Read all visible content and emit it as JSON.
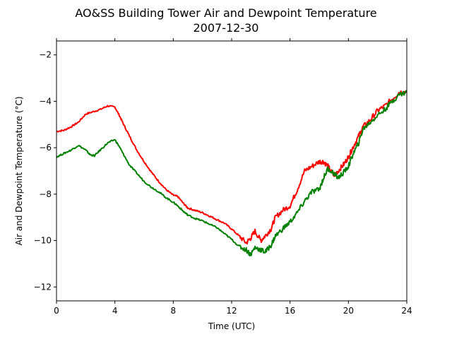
{
  "chart_data": {
    "type": "line",
    "title": "AO&SS Building Tower Air and Dewpoint Temperature",
    "subtitle": "2007-12-30",
    "xlabel": "Time (UTC)",
    "ylabel": "Air and Dewpoint Temperature (°C)",
    "xlim": [
      0,
      24
    ],
    "ylim": [
      -12.6,
      -1.4
    ],
    "xticks": [
      0,
      4,
      8,
      12,
      16,
      20,
      24
    ],
    "xtick_labels": [
      "0",
      "4",
      "8",
      "12",
      "16",
      "20",
      "24"
    ],
    "yticks": [
      -12,
      -10,
      -8,
      -6,
      -4,
      -2
    ],
    "ytick_labels": [
      "−12",
      "−10",
      "−8",
      "−6",
      "−4",
      "−2"
    ],
    "grid": false,
    "legend": "none",
    "series": [
      {
        "color": "#ff0000",
        "x": [
          0,
          0.5,
          1,
          1.5,
          2,
          2.5,
          3,
          3.5,
          4,
          4.3,
          4.6,
          5,
          5.5,
          6,
          6.5,
          7,
          7.5,
          8,
          8.3,
          8.7,
          9,
          9.5,
          10,
          10.5,
          11,
          11.5,
          12,
          12.5,
          13,
          13.3,
          13.6,
          14,
          14.3,
          14.7,
          15,
          15.5,
          16,
          16.5,
          17,
          17.5,
          18,
          18.3,
          18.6,
          19,
          19.3,
          19.7,
          20,
          20.3,
          20.7,
          21,
          21.5,
          22,
          22.5,
          23,
          23.5,
          24
        ],
        "y": [
          -5.3,
          -5.25,
          -5.1,
          -4.9,
          -4.55,
          -4.45,
          -4.35,
          -4.2,
          -4.25,
          -4.6,
          -5.0,
          -5.5,
          -6.1,
          -6.6,
          -7.05,
          -7.45,
          -7.8,
          -8.05,
          -8.1,
          -8.4,
          -8.6,
          -8.7,
          -8.8,
          -8.95,
          -9.1,
          -9.25,
          -9.5,
          -9.8,
          -10.1,
          -9.9,
          -9.6,
          -10.0,
          -9.8,
          -9.5,
          -9.0,
          -8.7,
          -8.5,
          -7.8,
          -7.0,
          -6.8,
          -6.6,
          -6.6,
          -6.8,
          -7.2,
          -7.0,
          -6.7,
          -6.4,
          -6.0,
          -5.5,
          -5.1,
          -4.8,
          -4.4,
          -4.2,
          -3.9,
          -3.6,
          -3.6
        ]
      },
      {
        "color": "#008000",
        "x": [
          0,
          0.5,
          1,
          1.5,
          2,
          2.3,
          2.6,
          3,
          3.5,
          4,
          4.3,
          4.6,
          5,
          5.5,
          6,
          6.5,
          7,
          7.5,
          8,
          8.3,
          8.7,
          9,
          9.5,
          10,
          10.5,
          11,
          11.5,
          12,
          12.5,
          13,
          13.3,
          13.6,
          14,
          14.3,
          14.7,
          15,
          15.5,
          16,
          16.5,
          17,
          17.5,
          18,
          18.3,
          18.6,
          19,
          19.3,
          19.7,
          20,
          20.3,
          20.7,
          21,
          21.5,
          22,
          22.5,
          23,
          23.5,
          24
        ],
        "y": [
          -6.4,
          -6.25,
          -6.1,
          -5.9,
          -6.1,
          -6.3,
          -6.35,
          -6.1,
          -5.8,
          -5.65,
          -5.95,
          -6.3,
          -6.75,
          -7.1,
          -7.45,
          -7.7,
          -7.9,
          -8.15,
          -8.35,
          -8.5,
          -8.75,
          -8.9,
          -9.05,
          -9.15,
          -9.3,
          -9.45,
          -9.7,
          -9.95,
          -10.25,
          -10.4,
          -10.6,
          -10.3,
          -10.4,
          -10.5,
          -10.2,
          -9.8,
          -9.5,
          -9.2,
          -8.8,
          -8.3,
          -7.9,
          -7.8,
          -7.3,
          -6.9,
          -7.1,
          -7.3,
          -7.05,
          -6.8,
          -6.3,
          -5.8,
          -5.2,
          -4.9,
          -4.6,
          -4.35,
          -4.0,
          -3.7,
          -3.6
        ]
      }
    ]
  }
}
